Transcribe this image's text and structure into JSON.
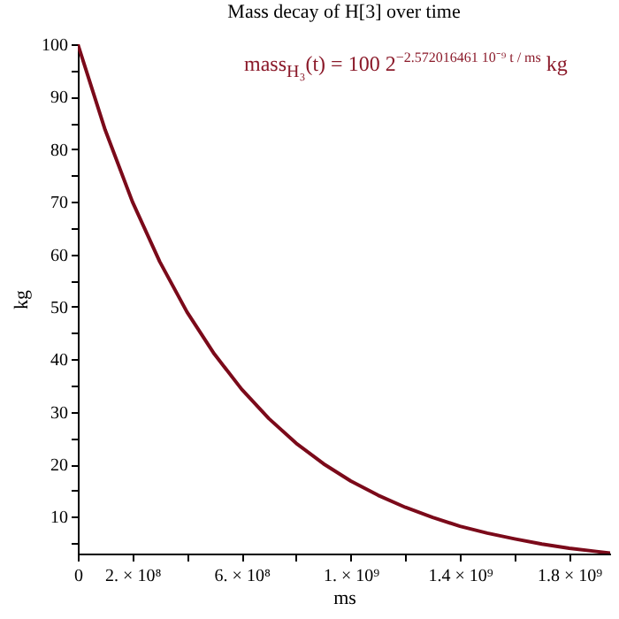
{
  "chart_data": {
    "type": "line",
    "title": "Mass decay of H[3] over time",
    "xlabel": "ms",
    "ylabel": "kg",
    "x": [
      0,
      100000000,
      200000000,
      300000000,
      400000000,
      500000000,
      600000000,
      700000000,
      800000000,
      900000000,
      1000000000,
      1100000000,
      1200000000,
      1300000000,
      1400000000,
      1500000000,
      1600000000,
      1700000000,
      1800000000,
      1900000000,
      1950000000
    ],
    "series": [
      {
        "color": "#7b0a1a",
        "values": [
          100,
          83.7,
          70.0,
          58.6,
          49.0,
          41.0,
          34.3,
          28.7,
          24.0,
          20.1,
          16.8,
          14.1,
          11.8,
          9.9,
          8.2,
          6.9,
          5.8,
          4.8,
          4.0,
          3.4,
          3.1
        ]
      }
    ],
    "xlim": [
      0,
      1950000000
    ],
    "xticks": [
      0,
      {
        "value": 200000000,
        "label": "2. × 10⁸"
      },
      {
        "value": 400000000,
        "label": null
      },
      {
        "value": 600000000,
        "label": "6. × 10⁸"
      },
      {
        "value": 800000000,
        "label": null
      },
      {
        "value": 1000000000,
        "label": "1. × 10⁹"
      },
      {
        "value": 1200000000,
        "label": null
      },
      {
        "value": 1400000000,
        "label": "1.4 × 10⁹"
      },
      {
        "value": 1600000000,
        "label": null
      },
      {
        "value": 1800000000,
        "label": "1.8 × 10⁹"
      }
    ],
    "ylim": [
      3,
      100
    ],
    "yticks": [
      {
        "value": 5,
        "label": null
      },
      10,
      {
        "value": 15,
        "label": null
      },
      20,
      {
        "value": 25,
        "label": null
      },
      30,
      {
        "value": 35,
        "label": null
      },
      40,
      {
        "value": 45,
        "label": null
      },
      50,
      {
        "value": 55,
        "label": null
      },
      60,
      {
        "value": 65,
        "label": null
      },
      70,
      {
        "value": 75,
        "label": null
      },
      80,
      {
        "value": 85,
        "label": null
      },
      90,
      {
        "value": 95,
        "label": null
      },
      100
    ],
    "annotations": [
      "mass$_{H₃}$(t) = 100 2$^{−2.572016461 10⁻⁹ t / ms}$ kg"
    ],
    "grid": false,
    "marker": "none",
    "line_style": "solid"
  }
}
